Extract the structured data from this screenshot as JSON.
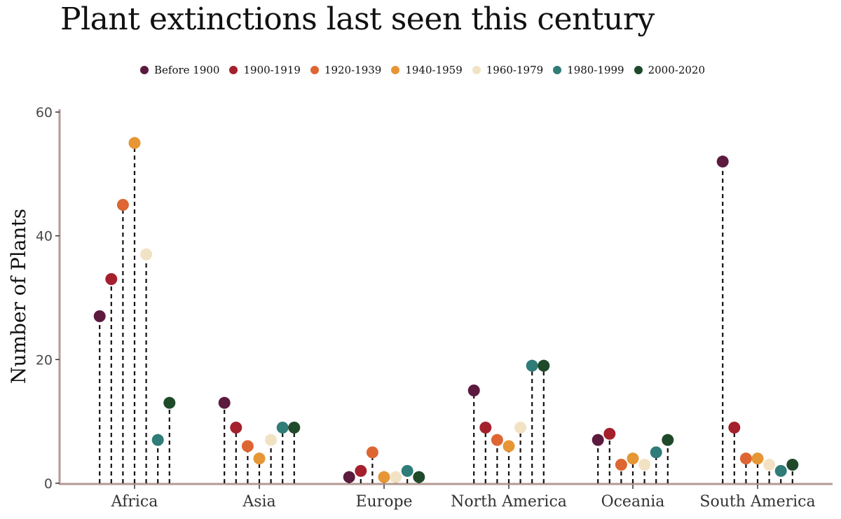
{
  "title": "Plant extinctions last seen this century",
  "chart_data": {
    "type": "scatter",
    "style": "lollipop (dot on dashed stem)",
    "title": "Plant extinctions last seen this century",
    "xlabel": "",
    "ylabel": "Number of Plants",
    "ylim": [
      0,
      60
    ],
    "yticks": [
      "0",
      "20",
      "40",
      "60"
    ],
    "grid": false,
    "legend_position": "top",
    "categories": [
      "Africa",
      "Asia",
      "Europe",
      "North America",
      "Oceania",
      "South America"
    ],
    "series": [
      {
        "name": "Before 1900",
        "color": "#5c1a3f",
        "values": [
          27,
          13,
          1,
          15,
          7,
          52
        ]
      },
      {
        "name": "1900-1919",
        "color": "#a4202d",
        "values": [
          33,
          9,
          2,
          9,
          8,
          9
        ]
      },
      {
        "name": "1920-1939",
        "color": "#dd6632",
        "values": [
          45,
          6,
          5,
          7,
          3,
          4
        ]
      },
      {
        "name": "1940-1959",
        "color": "#e69635",
        "values": [
          55,
          4,
          1,
          6,
          4,
          4
        ]
      },
      {
        "name": "1960-1979",
        "color": "#f2e2c4",
        "values": [
          37,
          7,
          1,
          9,
          3,
          3
        ]
      },
      {
        "name": "1980-1999",
        "color": "#2f7c78",
        "values": [
          7,
          9,
          2,
          19,
          5,
          2
        ]
      },
      {
        "name": "2000-2020",
        "color": "#1f4a2a",
        "values": [
          13,
          9,
          1,
          19,
          7,
          3
        ]
      }
    ]
  }
}
